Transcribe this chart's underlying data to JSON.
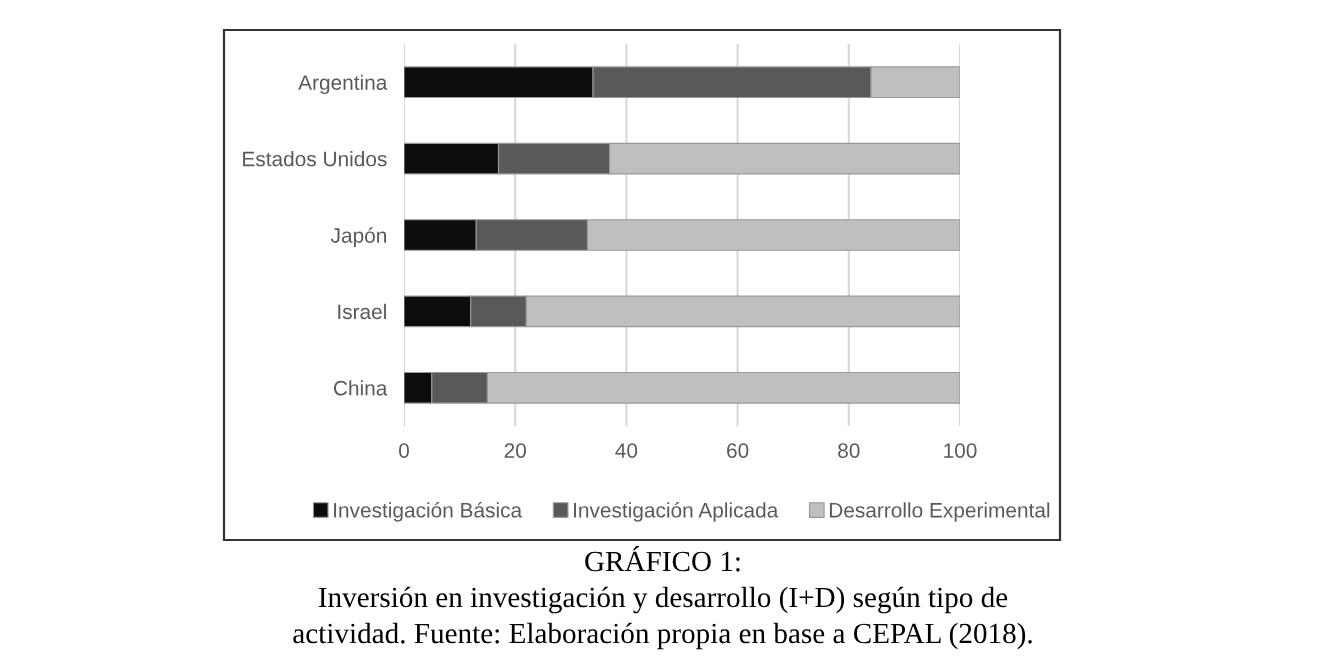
{
  "chart_data": {
    "type": "bar",
    "orientation": "horizontal",
    "stacked": true,
    "categories": [
      "Argentina",
      "Estados Unidos",
      "Japón",
      "Israel",
      "China"
    ],
    "series": [
      {
        "name": "Investigación Básica",
        "color": "#0d0d0d",
        "values": [
          34,
          17,
          13,
          12,
          5
        ]
      },
      {
        "name": "Investigación Aplicada",
        "color": "#595959",
        "values": [
          50,
          20,
          20,
          10,
          10
        ]
      },
      {
        "name": "Desarrollo Experimental",
        "color": "#bfbfbf",
        "values": [
          16,
          63,
          67,
          78,
          85
        ]
      }
    ],
    "xlim": [
      0,
      100
    ],
    "xticks": [
      0,
      20,
      40,
      60,
      80,
      100
    ],
    "grid": "x",
    "legend": "bottom",
    "annotations": [
      "GRÁFICO 1:",
      "Inversión en investigación y desarrollo (I+D) según tipo de",
      "actividad. Fuente: Elaboración propia en base a CEPAL (2018)."
    ]
  }
}
